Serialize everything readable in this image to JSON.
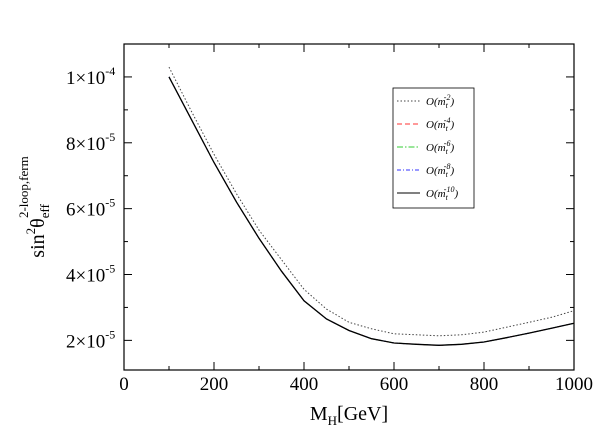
{
  "chart_data": {
    "type": "line",
    "xlabel": "M_H[GeV]",
    "xlabel_main": "M",
    "xlabel_sub": "H",
    "xlabel_rest": "[GeV]",
    "ylabel_main": "sin",
    "ylabel_sup1": "2",
    "ylabel_theta": "θ",
    "ylabel_sub": "eff",
    "ylabel_sup2": "2-loop,ferm",
    "xlim": [
      0,
      1000
    ],
    "ylim": [
      1.1e-05,
      0.00011
    ],
    "y_scale": 1e-05,
    "grid": false,
    "legend_position": "top-right",
    "x_ticks": [
      0,
      200,
      400,
      600,
      800,
      1000
    ],
    "x_tick_labels": [
      "0",
      "200",
      "400",
      "600",
      "800",
      "1000"
    ],
    "y_ticks": [
      2e-05,
      4e-05,
      6e-05,
      8e-05,
      0.0001
    ],
    "y_tick_labels": [
      {
        "mant": "2×10",
        "exp": "-5"
      },
      {
        "mant": "4×10",
        "exp": "-5"
      },
      {
        "mant": "6×10",
        "exp": "-5"
      },
      {
        "mant": "8×10",
        "exp": "-5"
      },
      {
        "mant": "1×10",
        "exp": "-4"
      }
    ],
    "x": [
      100,
      150,
      200,
      250,
      300,
      350,
      400,
      450,
      500,
      550,
      600,
      650,
      700,
      750,
      800,
      850,
      900,
      950,
      1000
    ],
    "series": [
      {
        "name_main": "O(m",
        "name_sub": "t",
        "name_sup": "-2",
        "name_end": ")",
        "color": "#444444",
        "dash": "1.5,2",
        "values": [
          0.000103,
          8.95e-05,
          7.65e-05,
          6.45e-05,
          5.35e-05,
          4.45e-05,
          3.55e-05,
          2.95e-05,
          2.55e-05,
          2.35e-05,
          2.2e-05,
          2.17e-05,
          2.14e-05,
          2.17e-05,
          2.25e-05,
          2.4e-05,
          2.55e-05,
          2.7e-05,
          2.9e-05
        ]
      },
      {
        "name_main": "O(m",
        "name_sub": "t",
        "name_sup": "-4",
        "name_end": ")",
        "color": "#ff3333",
        "dash": "5,3",
        "values": [
          0.0001,
          8.7e-05,
          7.4e-05,
          6.2e-05,
          5.1e-05,
          4.1e-05,
          3.2e-05,
          2.65e-05,
          2.3e-05,
          2.05e-05,
          1.92e-05,
          1.88e-05,
          1.85e-05,
          1.88e-05,
          1.95e-05,
          2.08e-05,
          2.22e-05,
          2.37e-05,
          2.52e-05
        ]
      },
      {
        "name_main": "O(m",
        "name_sub": "t",
        "name_sup": "-6",
        "name_end": ")",
        "color": "#33cc33",
        "dash": "6,2,1.5,2",
        "values": [
          0.0001,
          8.7e-05,
          7.4e-05,
          6.2e-05,
          5.1e-05,
          4.1e-05,
          3.2e-05,
          2.65e-05,
          2.3e-05,
          2.05e-05,
          1.92e-05,
          1.88e-05,
          1.85e-05,
          1.88e-05,
          1.95e-05,
          2.08e-05,
          2.22e-05,
          2.37e-05,
          2.52e-05
        ]
      },
      {
        "name_main": "O(m",
        "name_sub": "t",
        "name_sup": "-8",
        "name_end": ")",
        "color": "#3333ff",
        "dash": "4,2,1,2",
        "values": [
          0.0001,
          8.7e-05,
          7.4e-05,
          6.2e-05,
          5.1e-05,
          4.1e-05,
          3.2e-05,
          2.65e-05,
          2.3e-05,
          2.05e-05,
          1.92e-05,
          1.88e-05,
          1.85e-05,
          1.88e-05,
          1.95e-05,
          2.08e-05,
          2.22e-05,
          2.37e-05,
          2.52e-05
        ]
      },
      {
        "name_main": "O(m",
        "name_sub": "t",
        "name_sup": "-10",
        "name_end": ")",
        "color": "#000000",
        "dash": "",
        "values": [
          0.0001,
          8.7e-05,
          7.4e-05,
          6.2e-05,
          5.1e-05,
          4.1e-05,
          3.2e-05,
          2.65e-05,
          2.3e-05,
          2.05e-05,
          1.92e-05,
          1.88e-05,
          1.85e-05,
          1.88e-05,
          1.95e-05,
          2.08e-05,
          2.22e-05,
          2.37e-05,
          2.52e-05
        ]
      }
    ]
  }
}
